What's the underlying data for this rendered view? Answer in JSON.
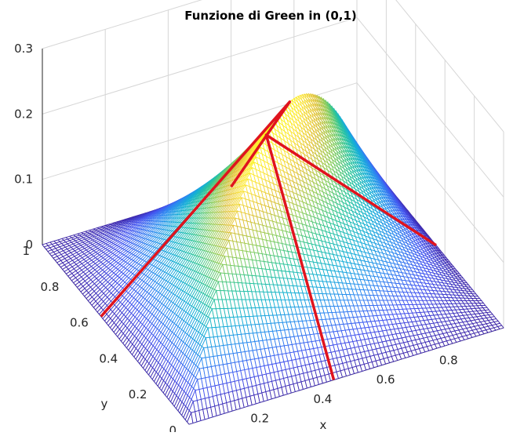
{
  "chart_data": {
    "type": "surface",
    "title": "Funzione di Green in (0,1)",
    "xlabel": "x",
    "ylabel": "y",
    "zlabel": "",
    "xlim": [
      0,
      1
    ],
    "ylim": [
      0,
      1
    ],
    "zlim": [
      0,
      0.3
    ],
    "xticks": [
      {
        "value": 0,
        "label": "0"
      },
      {
        "value": 0.2,
        "label": "0.2"
      },
      {
        "value": 0.4,
        "label": "0.4"
      },
      {
        "value": 0.6,
        "label": "0.6"
      },
      {
        "value": 0.8,
        "label": "0.8"
      }
    ],
    "yticks": [
      {
        "value": 0,
        "label": "0"
      },
      {
        "value": 0.2,
        "label": "0.2"
      },
      {
        "value": 0.4,
        "label": "0.4"
      },
      {
        "value": 0.6,
        "label": "0.6"
      },
      {
        "value": 0.8,
        "label": "0.8"
      },
      {
        "value": 1,
        "label": "1"
      }
    ],
    "zticks": [
      {
        "value": 0,
        "label": "0"
      },
      {
        "value": 0.1,
        "label": "0.1"
      },
      {
        "value": 0.2,
        "label": "0.2"
      },
      {
        "value": 0.3,
        "label": "0.3"
      }
    ],
    "grid": true,
    "colormap": [
      "#3e26a8",
      "#4455f0",
      "#2c8af0",
      "#15b0d6",
      "#2cc59a",
      "#8ccd5a",
      "#e1c23a",
      "#fde73a",
      "#f9fb14"
    ],
    "surface": {
      "function": "G(x,y) = x(1-y) for x <= y, y(1-x) for x >= y",
      "mesh_cells": 80
    },
    "highlight_lines": [
      {
        "color": "#e0141e",
        "points": [
          [
            0.46,
            0,
            0
          ],
          [
            0.46,
            0.46,
            0.2484
          ],
          [
            1,
            0.46,
            0
          ]
        ]
      },
      {
        "color": "#e0141e",
        "points": [
          [
            0,
            0.6,
            0
          ],
          [
            0.6,
            0.6,
            0.24
          ],
          [
            0.6,
            1,
            0
          ]
        ]
      }
    ]
  }
}
